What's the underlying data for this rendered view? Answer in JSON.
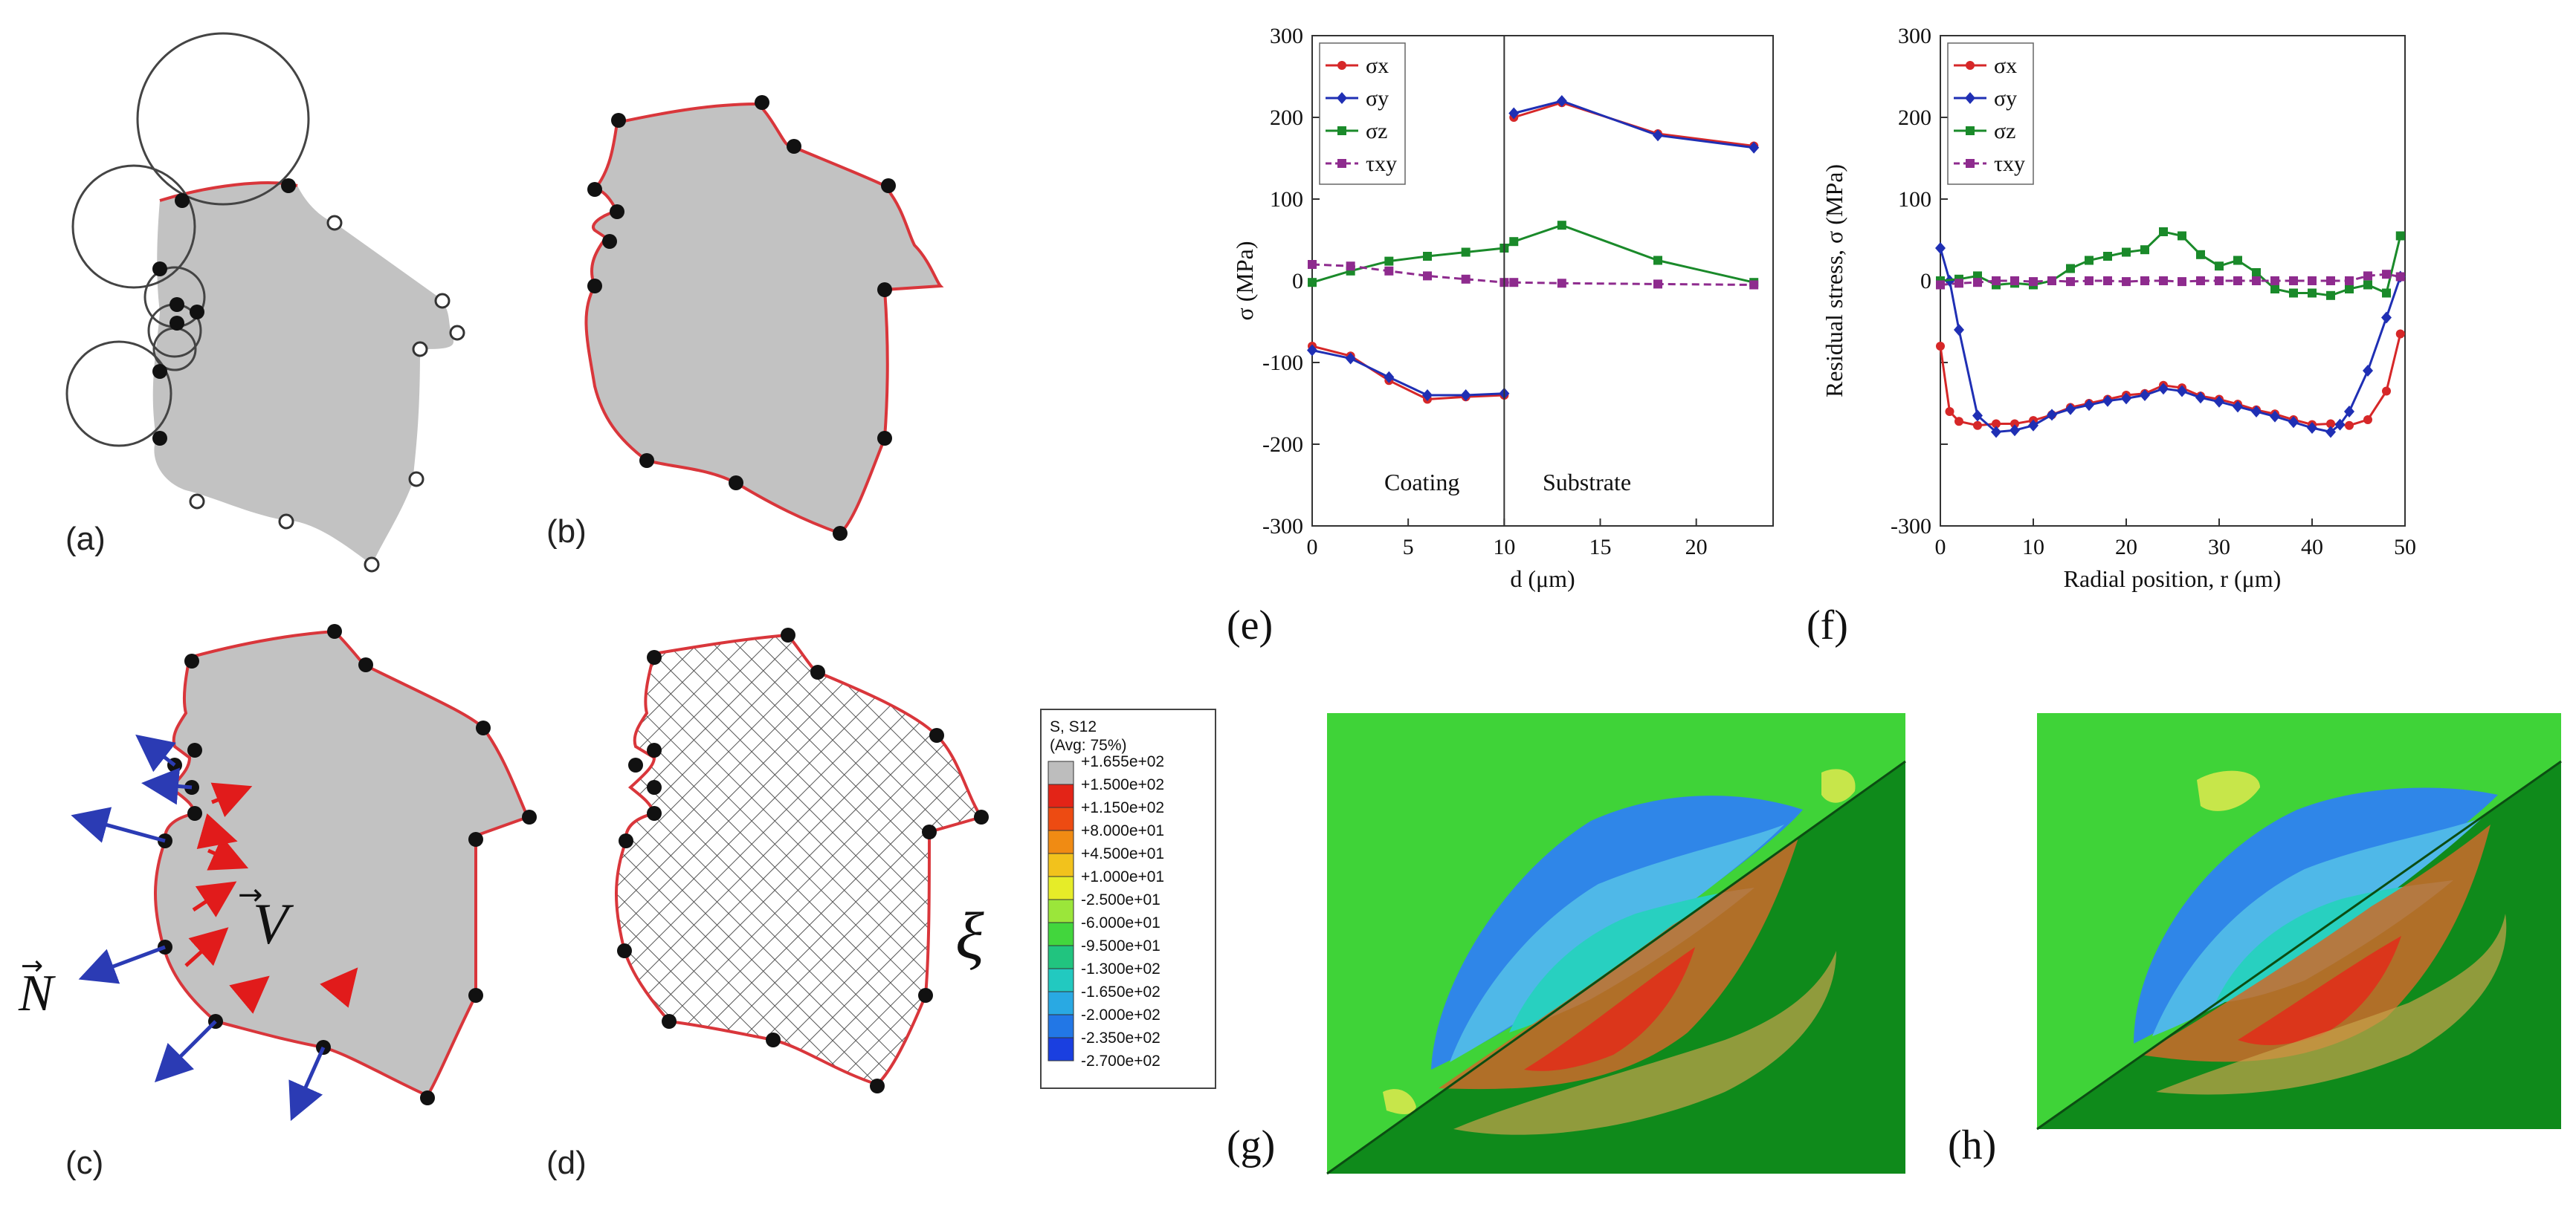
{
  "panel_labels": {
    "a": "(a)",
    "b": "(b)",
    "c": "(c)",
    "d": "(d)",
    "e": "(e)",
    "f": "(f)",
    "g": "(g)",
    "h": "(h)"
  },
  "vector_labels": {
    "normal": "N",
    "velocity": "V",
    "xi": "ξ"
  },
  "colors": {
    "boundary": "#d9363b",
    "node": "#111111",
    "fill": "#c2c2c2",
    "normal_arrow": "#2b3bb4",
    "velocity_arrow": "#e11b1b"
  },
  "chart_data": [
    {
      "id": "e",
      "type": "line",
      "title": "",
      "xlabel": "d (μm)",
      "ylabel": "σ (MPa)",
      "xlim": [
        0,
        24
      ],
      "ylim": [
        -300,
        300
      ],
      "xticks": [
        0,
        5,
        10,
        15,
        20
      ],
      "yticks": [
        -300,
        -200,
        -100,
        0,
        100,
        200,
        300
      ],
      "grid": false,
      "legend_position": "top-left",
      "region_labels": [
        "Coating",
        "Substrate"
      ],
      "divider_x": 10,
      "series": [
        {
          "name": "σx",
          "color": "#d62728",
          "marker": "circle",
          "segments": [
            {
              "x": [
                0,
                2,
                4,
                6,
                8,
                10
              ],
              "y": [
                -80,
                -92,
                -122,
                -145,
                -142,
                -140
              ]
            },
            {
              "x": [
                10.5,
                13,
                18,
                23
              ],
              "y": [
                200,
                218,
                180,
                165
              ]
            }
          ]
        },
        {
          "name": "σy",
          "color": "#1f2fb4",
          "marker": "diamond",
          "segments": [
            {
              "x": [
                0,
                2,
                4,
                6,
                8,
                10
              ],
              "y": [
                -85,
                -95,
                -118,
                -140,
                -140,
                -138
              ]
            },
            {
              "x": [
                10.5,
                13,
                18,
                23
              ],
              "y": [
                205,
                220,
                178,
                163
              ]
            }
          ]
        },
        {
          "name": "σz",
          "color": "#1a8a2a",
          "marker": "square",
          "segments": [
            {
              "x": [
                0,
                2,
                4,
                6,
                8,
                10,
                10.5,
                13,
                18,
                23
              ],
              "y": [
                -2,
                12,
                24,
                30,
                35,
                40,
                48,
                68,
                25,
                -2
              ]
            }
          ]
        },
        {
          "name": "τxy",
          "color": "#8e2b8e",
          "marker": "square",
          "segments": [
            {
              "x": [
                0,
                2,
                4,
                6,
                8,
                10,
                10.5,
                13,
                18,
                23
              ],
              "y": [
                20,
                18,
                12,
                6,
                2,
                -2,
                -2,
                -3,
                -4,
                -5
              ]
            }
          ]
        }
      ]
    },
    {
      "id": "f",
      "type": "line",
      "title": "",
      "xlabel": "Radial position, r (μm)",
      "ylabel": "Residual stress, σ (MPa)",
      "xlim": [
        0,
        50
      ],
      "ylim": [
        -300,
        300
      ],
      "xticks": [
        0,
        10,
        20,
        30,
        40,
        50
      ],
      "yticks": [
        -300,
        -200,
        -100,
        0,
        100,
        200,
        300
      ],
      "ytick_labels_shown": [
        -300,
        0,
        100,
        200,
        300
      ],
      "grid": false,
      "legend_position": "top-left",
      "series": [
        {
          "name": "σx",
          "color": "#d62728",
          "marker": "circle",
          "x": [
            0,
            1,
            2,
            4,
            6,
            8,
            10,
            12,
            14,
            16,
            18,
            20,
            22,
            24,
            26,
            28,
            30,
            32,
            34,
            36,
            38,
            40,
            42,
            44,
            46,
            48,
            49.5
          ],
          "y": [
            -80,
            -160,
            -172,
            -177,
            -175,
            -175,
            -171,
            -164,
            -155,
            -150,
            -145,
            -140,
            -138,
            -128,
            -131,
            -141,
            -145,
            -151,
            -158,
            -163,
            -170,
            -176,
            -175,
            -177,
            -170,
            -135,
            -65
          ]
        },
        {
          "name": "σy",
          "color": "#1f2fb4",
          "marker": "diamond",
          "x": [
            0,
            1,
            2,
            4,
            6,
            8,
            10,
            12,
            14,
            16,
            18,
            20,
            22,
            24,
            26,
            28,
            30,
            32,
            34,
            36,
            38,
            40,
            42,
            43,
            44,
            46,
            48,
            49.5
          ],
          "y": [
            40,
            0,
            -60,
            -165,
            -185,
            -183,
            -177,
            -164,
            -157,
            -152,
            -147,
            -144,
            -140,
            -132,
            -135,
            -143,
            -148,
            -154,
            -160,
            -166,
            -173,
            -180,
            -185,
            -176,
            -160,
            -110,
            -45,
            5
          ]
        },
        {
          "name": "σz",
          "color": "#1a8a2a",
          "marker": "square",
          "x": [
            0,
            2,
            4,
            6,
            8,
            10,
            12,
            14,
            16,
            18,
            20,
            22,
            24,
            26,
            28,
            30,
            32,
            34,
            36,
            38,
            40,
            42,
            44,
            46,
            48,
            49.5
          ],
          "y": [
            0,
            2,
            6,
            -5,
            -3,
            -5,
            0,
            15,
            25,
            30,
            35,
            38,
            60,
            55,
            32,
            18,
            25,
            10,
            -10,
            -15,
            -15,
            -18,
            -10,
            -5,
            -15,
            55
          ]
        },
        {
          "name": "τxy",
          "color": "#8e2b8e",
          "marker": "square",
          "x": [
            0,
            2,
            4,
            6,
            8,
            10,
            12,
            14,
            16,
            18,
            20,
            22,
            24,
            26,
            28,
            30,
            32,
            34,
            36,
            38,
            40,
            42,
            44,
            46,
            48,
            49.5
          ],
          "y": [
            -5,
            -3,
            -2,
            0,
            0,
            -1,
            0,
            -1,
            0,
            0,
            -1,
            0,
            0,
            -1,
            0,
            0,
            0,
            0,
            0,
            0,
            0,
            0,
            0,
            6,
            8,
            5
          ]
        }
      ]
    },
    {
      "id": "g-h-legend",
      "type": "heatmap",
      "title": "S, S12",
      "subtitle": "(Avg: 75%)",
      "levels": [
        "+1.655e+02",
        "+1.500e+02",
        "+1.150e+02",
        "+8.000e+01",
        "+4.500e+01",
        "+1.000e+01",
        "-2.500e+01",
        "-6.000e+01",
        "-9.500e+01",
        "-1.300e+02",
        "-1.650e+02",
        "-2.000e+02",
        "-2.350e+02",
        "-2.700e+02"
      ],
      "band_colors": [
        "#bdbdbd",
        "#e32417",
        "#ed4b12",
        "#f08b13",
        "#f2c21c",
        "#e6ec28",
        "#9be63a",
        "#42d63d",
        "#21c47f",
        "#22c9c0",
        "#29a9e3",
        "#2277e6",
        "#1a3fe0"
      ]
    }
  ]
}
